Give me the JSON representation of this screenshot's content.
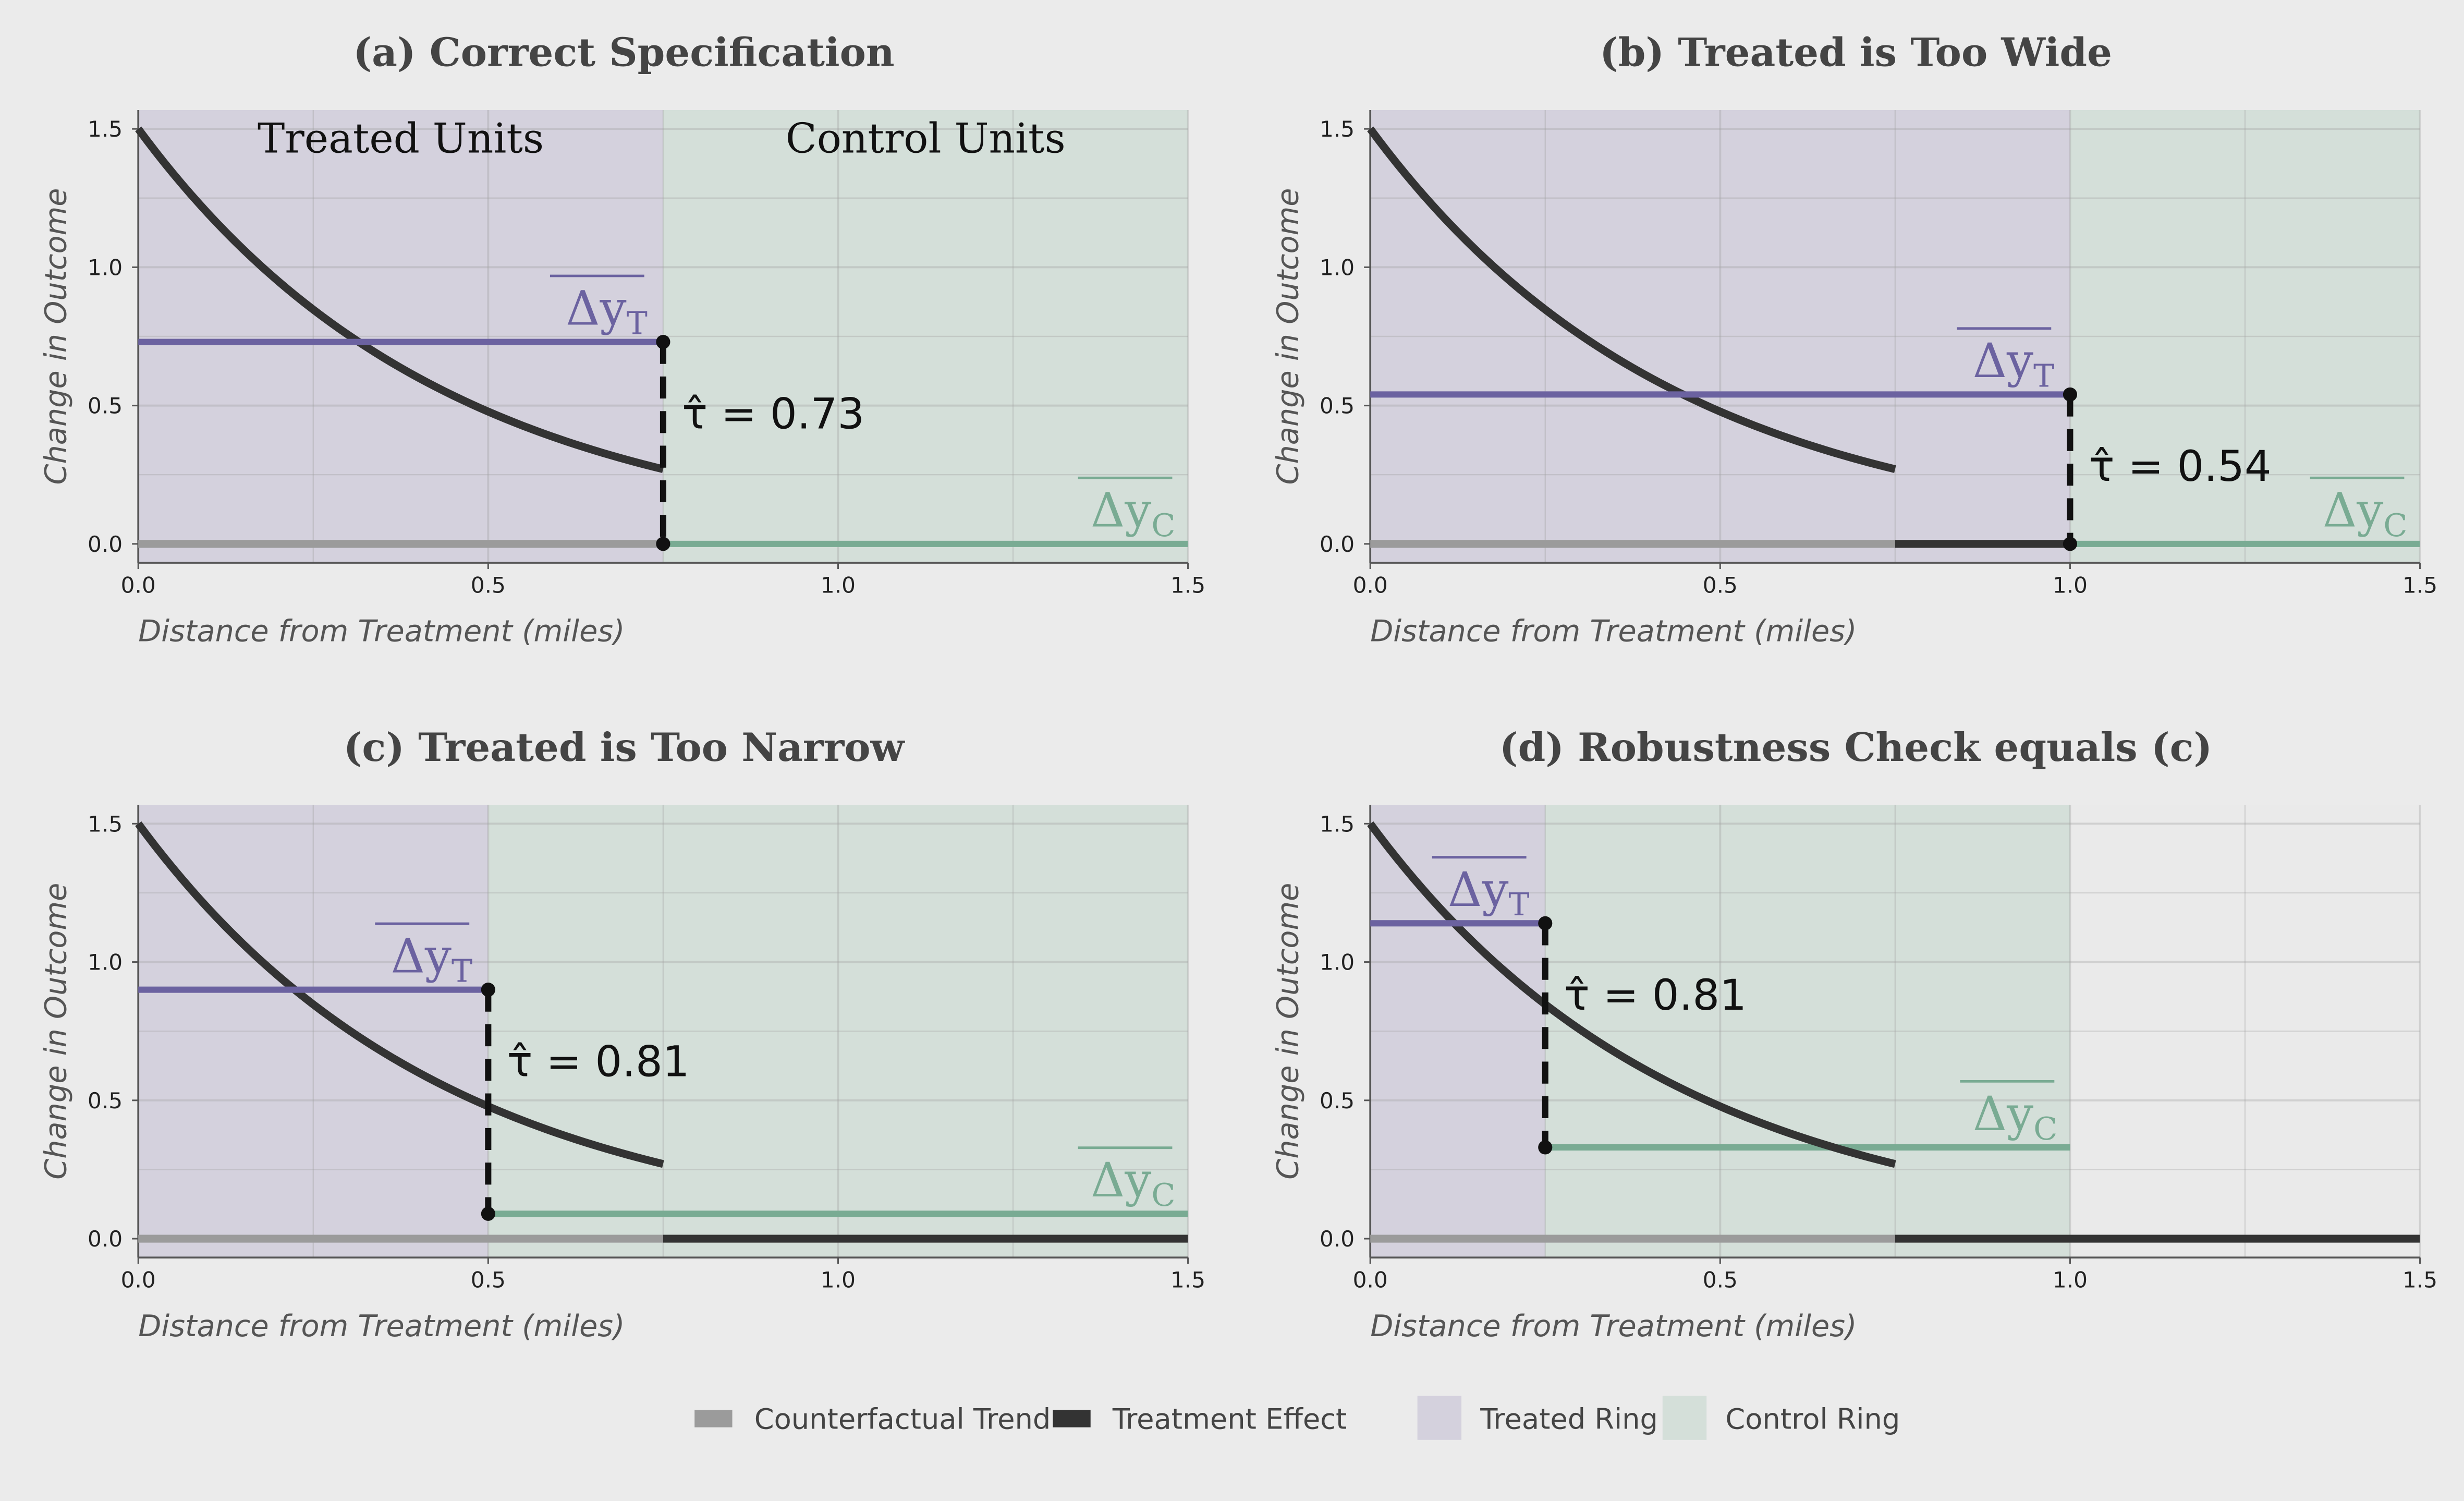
{
  "colors": {
    "background": "#ebebeb",
    "treated_ring": "#d4d1dd",
    "control_ring": "#d4dfd9",
    "treated_mean": "#6b62a0",
    "control_mean": "#79ab93",
    "curve": "#333333",
    "counterfactual": "#9b9b9b",
    "treatment_effect": "#333333",
    "grid_fill": "#dcdcdc",
    "text": "#444444"
  },
  "chart_data": [
    {
      "type": "line",
      "title": "(a) Correct Specification",
      "xlabel": "Distance from Treatment (miles)",
      "ylabel": "Change in Outcome",
      "xlim": [
        0,
        1.5
      ],
      "ylim": [
        0,
        1.5
      ],
      "x_ticks": [
        "0.0",
        "0.5",
        "1.0",
        "1.5"
      ],
      "y_ticks": [
        "0.0",
        "0.5",
        "1.0",
        "1.5"
      ],
      "grid": true,
      "treated_ring": [
        0,
        0.75
      ],
      "control_ring": [
        0.75,
        1.5
      ],
      "effect_curve": {
        "x_start": 0,
        "x_end": 0.75,
        "y_start": 1.5,
        "y_end": 0.27
      },
      "treatment_effect_line": [],
      "counterfactual_line": [
        0,
        0.75
      ],
      "mean_treated": {
        "value": 0.73,
        "x_range": [
          0,
          0.75
        ],
        "label": "Δy_T"
      },
      "mean_control": {
        "value": 0.0,
        "x_range": [
          0.75,
          1.5
        ],
        "label": "Δy_C"
      },
      "estimate": {
        "x": 0.75,
        "text": "τ̂ = 0.73"
      },
      "region_labels": [
        "Treated Units",
        "Control Units"
      ]
    },
    {
      "type": "line",
      "title": "(b) Treated is Too Wide",
      "xlabel": "Distance from Treatment (miles)",
      "ylabel": "Change in Outcome",
      "xlim": [
        0,
        1.5
      ],
      "ylim": [
        0,
        1.5
      ],
      "x_ticks": [
        "0.0",
        "0.5",
        "1.0",
        "1.5"
      ],
      "y_ticks": [
        "0.0",
        "0.5",
        "1.0",
        "1.5"
      ],
      "grid": true,
      "treated_ring": [
        0,
        1.0
      ],
      "control_ring": [
        1.0,
        1.5
      ],
      "effect_curve": {
        "x_start": 0,
        "x_end": 0.75,
        "y_start": 1.5,
        "y_end": 0.27
      },
      "treatment_effect_line": [
        0.75,
        1.0
      ],
      "counterfactual_line": [
        0,
        0.75
      ],
      "mean_treated": {
        "value": 0.54,
        "x_range": [
          0,
          1.0
        ],
        "label": "Δy_T"
      },
      "mean_control": {
        "value": 0.0,
        "x_range": [
          1.0,
          1.5
        ],
        "label": "Δy_C"
      },
      "estimate": {
        "x": 1.0,
        "text": "τ̂ = 0.54"
      },
      "region_labels": []
    },
    {
      "type": "line",
      "title": "(c) Treated is Too Narrow",
      "xlabel": "Distance from Treatment (miles)",
      "ylabel": "Change in Outcome",
      "xlim": [
        0,
        1.5
      ],
      "ylim": [
        0,
        1.5
      ],
      "x_ticks": [
        "0.0",
        "0.5",
        "1.0",
        "1.5"
      ],
      "y_ticks": [
        "0.0",
        "0.5",
        "1.0",
        "1.5"
      ],
      "grid": true,
      "treated_ring": [
        0,
        0.5
      ],
      "control_ring": [
        0.5,
        1.5
      ],
      "effect_curve": {
        "x_start": 0,
        "x_end": 0.75,
        "y_start": 1.5,
        "y_end": 0.27
      },
      "treatment_effect_line": [
        0.75,
        1.5
      ],
      "counterfactual_line": [
        0,
        0.75
      ],
      "mean_treated": {
        "value": 0.9,
        "x_range": [
          0,
          0.5
        ],
        "label": "Δy_T"
      },
      "mean_control": {
        "value": 0.09,
        "x_range": [
          0.5,
          1.5
        ],
        "label": "Δy_C"
      },
      "estimate": {
        "x": 0.5,
        "text": "τ̂ = 0.81"
      },
      "region_labels": []
    },
    {
      "type": "line",
      "title": "(d) Robustness Check equals (c)",
      "xlabel": "Distance from Treatment (miles)",
      "ylabel": "Change in Outcome",
      "xlim": [
        0,
        1.5
      ],
      "ylim": [
        0,
        1.5
      ],
      "x_ticks": [
        "0.0",
        "0.5",
        "1.0",
        "1.5"
      ],
      "y_ticks": [
        "0.0",
        "0.5",
        "1.0",
        "1.5"
      ],
      "grid": true,
      "treated_ring": [
        0,
        0.25
      ],
      "control_ring": [
        0.25,
        1.0
      ],
      "effect_curve": {
        "x_start": 0,
        "x_end": 0.75,
        "y_start": 1.5,
        "y_end": 0.27
      },
      "treatment_effect_line": [
        0.75,
        1.5
      ],
      "counterfactual_line": [
        0,
        0.75
      ],
      "mean_treated": {
        "value": 1.14,
        "x_range": [
          0,
          0.25
        ],
        "label": "Δy_T"
      },
      "mean_control": {
        "value": 0.33,
        "x_range": [
          0.25,
          1.0
        ],
        "label": "Δy_C"
      },
      "estimate": {
        "x": 0.25,
        "text": "τ̂ = 0.81"
      },
      "region_labels": []
    }
  ],
  "legend": {
    "position": "bottom",
    "items": [
      {
        "kind": "line",
        "label": "Counterfactual Trend",
        "color": "#9b9b9b"
      },
      {
        "kind": "line",
        "label": "Treatment Effect",
        "color": "#333333"
      },
      {
        "kind": "fill",
        "label": "Treated Ring",
        "color": "#d4d1dd"
      },
      {
        "kind": "fill",
        "label": "Control Ring",
        "color": "#d4dfd9"
      }
    ]
  }
}
